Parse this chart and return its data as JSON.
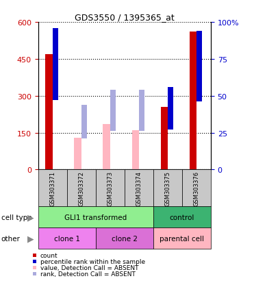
{
  "title": "GDS3550 / 1395365_at",
  "samples": [
    "GSM303371",
    "GSM303372",
    "GSM303373",
    "GSM303374",
    "GSM303375",
    "GSM303376"
  ],
  "count_values": [
    470,
    null,
    null,
    null,
    255,
    560
  ],
  "percentile_values": [
    48,
    null,
    null,
    null,
    28,
    47
  ],
  "value_absent": [
    null,
    130,
    185,
    160,
    null,
    null
  ],
  "rank_absent_pct": [
    null,
    22,
    27,
    27,
    null,
    null
  ],
  "ylim_left": [
    0,
    600
  ],
  "ylim_right": [
    0,
    100
  ],
  "yticks_left": [
    0,
    150,
    300,
    450,
    600
  ],
  "yticks_right": [
    0,
    25,
    50,
    75,
    100
  ],
  "cell_type_labels": [
    {
      "label": "GLI1 transformed",
      "start": 0,
      "end": 4,
      "color": "#90EE90"
    },
    {
      "label": "control",
      "start": 4,
      "end": 6,
      "color": "#3CB371"
    }
  ],
  "other_labels": [
    {
      "label": "clone 1",
      "start": 0,
      "end": 2,
      "color": "#EE82EE"
    },
    {
      "label": "clone 2",
      "start": 2,
      "end": 4,
      "color": "#DA70D6"
    },
    {
      "label": "parental cell",
      "start": 4,
      "end": 6,
      "color": "#FFB6C1"
    }
  ],
  "count_color": "#CC0000",
  "percentile_color": "#0000CC",
  "value_absent_color": "#FFB6C1",
  "rank_absent_color": "#AAAADD",
  "sample_bg_color": "#C8C8C8",
  "legend_items": [
    {
      "color": "#CC0000",
      "label": "count",
      "marker": "s"
    },
    {
      "color": "#0000CC",
      "label": "percentile rank within the sample",
      "marker": "s"
    },
    {
      "color": "#FFB6C1",
      "label": "value, Detection Call = ABSENT",
      "marker": "s"
    },
    {
      "color": "#AAAADD",
      "label": "rank, Detection Call = ABSENT",
      "marker": "s"
    }
  ]
}
